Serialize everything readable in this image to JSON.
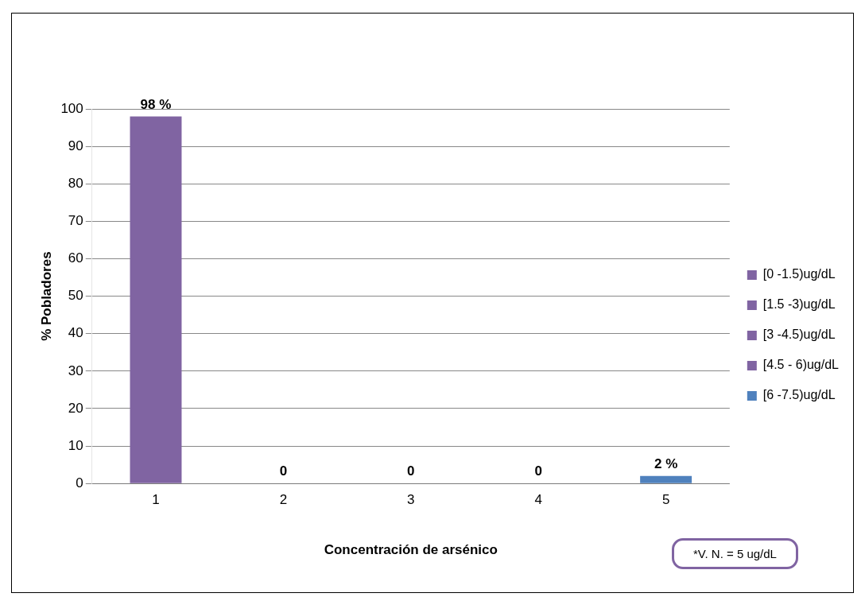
{
  "chart_data": {
    "type": "bar",
    "xlabel": "Concentración de arsénico",
    "ylabel": "% Pobladores",
    "categories": [
      "1",
      "2",
      "3",
      "4",
      "5"
    ],
    "series": [
      {
        "name": "[0 -1.5)ug/dL",
        "color": "#8064a2",
        "values": [
          98,
          null,
          null,
          null,
          null
        ],
        "value_labels": [
          "98 %",
          null,
          null,
          null,
          null
        ]
      },
      {
        "name": "[1.5 -3)ug/dL",
        "color": "#8064a2",
        "values": [
          null,
          0,
          null,
          null,
          null
        ],
        "value_labels": [
          null,
          "0",
          null,
          null,
          null
        ]
      },
      {
        "name": "[3 -4.5)ug/dL",
        "color": "#8064a2",
        "values": [
          null,
          null,
          0,
          null,
          null
        ],
        "value_labels": [
          null,
          null,
          "0",
          null,
          null
        ]
      },
      {
        "name": "[4.5 - 6)ug/dL",
        "color": "#8064a2",
        "values": [
          null,
          null,
          null,
          0,
          null
        ],
        "value_labels": [
          null,
          null,
          null,
          "0",
          null
        ]
      },
      {
        "name": "[6 -7.5)ug/dL",
        "color": "#4f81bd",
        "values": [
          null,
          null,
          null,
          null,
          2
        ],
        "value_labels": [
          null,
          null,
          null,
          null,
          "2 %"
        ]
      }
    ],
    "ylim": [
      0,
      100
    ],
    "yticks": [
      0,
      10,
      20,
      30,
      40,
      50,
      60,
      70,
      80,
      90,
      100
    ],
    "grid": "y",
    "legend": "right",
    "annotations": [
      "*V. N. = 5 ug/dL"
    ]
  }
}
